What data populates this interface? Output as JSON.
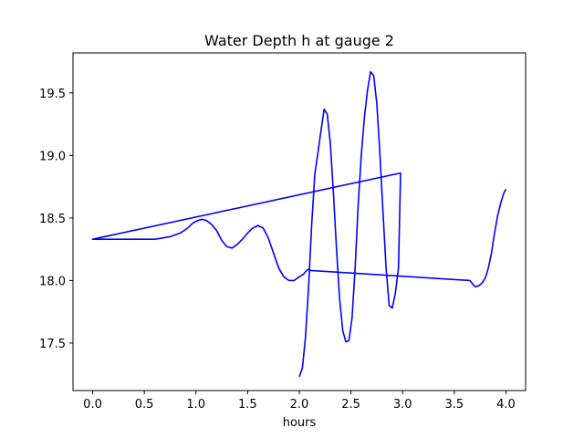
{
  "chart_data": {
    "type": "line",
    "title": "Water Depth h at gauge 2",
    "xlabel": "hours",
    "ylabel": "",
    "xlim": [
      -0.19,
      4.19
    ],
    "ylim": [
      17.12,
      19.82
    ],
    "grid": false,
    "x_ticks": [
      "0.0",
      "0.5",
      "1.0",
      "1.5",
      "2.0",
      "2.5",
      "3.0",
      "3.5",
      "4.0"
    ],
    "x_tick_values": [
      0,
      0.5,
      1.0,
      1.5,
      2.0,
      2.5,
      3.0,
      3.5,
      4.0
    ],
    "y_ticks": [
      "17.5",
      "18.0",
      "18.5",
      "19.0",
      "19.5"
    ],
    "y_tick_values": [
      17.5,
      18.0,
      18.5,
      19.0,
      19.5
    ],
    "series": [
      {
        "color": "#0000ff",
        "x": [
          2.0,
          2.03,
          2.06,
          2.09,
          2.12,
          2.15,
          2.18,
          2.21,
          2.24,
          2.27,
          2.3,
          2.33,
          2.36,
          2.39,
          2.42,
          2.45,
          2.48,
          2.51,
          2.54,
          2.57,
          2.6,
          2.63,
          2.66,
          2.69,
          2.72,
          2.75,
          2.78,
          2.81,
          2.84,
          2.87,
          2.9,
          2.93,
          2.96,
          2.98,
          0.0,
          0.3,
          0.6,
          0.75,
          0.85,
          0.92,
          0.97,
          1.02,
          1.06,
          1.1,
          1.15,
          1.2,
          1.25,
          1.3,
          1.35,
          1.4,
          1.45,
          1.5,
          1.55,
          1.6,
          1.65,
          1.7,
          1.75,
          1.8,
          1.85,
          1.9,
          1.95,
          2.0,
          2.04,
          2.07,
          2.09,
          2.11,
          3.65,
          3.67,
          3.69,
          3.71,
          3.74,
          3.77,
          3.8,
          3.83,
          3.86,
          3.89,
          3.92,
          3.95,
          3.98,
          4.0
        ],
        "y": [
          17.23,
          17.3,
          17.55,
          17.95,
          18.45,
          18.85,
          19.02,
          19.2,
          19.37,
          19.33,
          19.1,
          18.7,
          18.25,
          17.85,
          17.6,
          17.51,
          17.52,
          17.7,
          18.1,
          18.6,
          19.0,
          19.3,
          19.52,
          19.67,
          19.64,
          19.42,
          19.02,
          18.55,
          18.1,
          17.8,
          17.78,
          17.9,
          18.1,
          18.86,
          18.33,
          18.33,
          18.33,
          18.35,
          18.38,
          18.42,
          18.46,
          18.48,
          18.49,
          18.48,
          18.45,
          18.4,
          18.32,
          18.27,
          18.26,
          18.29,
          18.33,
          18.38,
          18.42,
          18.44,
          18.42,
          18.34,
          18.22,
          18.1,
          18.03,
          18.0,
          18.0,
          18.03,
          18.05,
          18.08,
          18.09,
          18.08,
          18.0,
          17.98,
          17.96,
          17.95,
          17.96,
          17.98,
          18.02,
          18.1,
          18.22,
          18.38,
          18.52,
          18.62,
          18.7,
          18.73
        ]
      }
    ]
  }
}
